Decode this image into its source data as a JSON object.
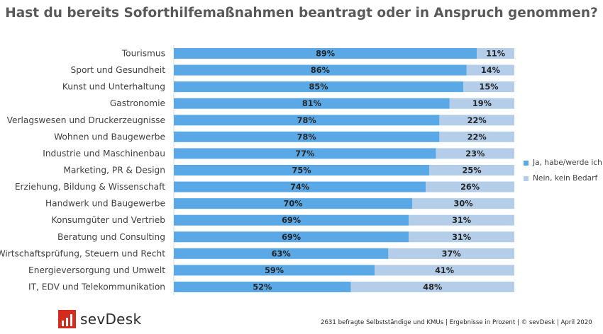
{
  "title": "Hast du bereits Soforthilfemaßnahmen beantragt oder in Anspruch genommen?",
  "chart_data": {
    "type": "bar",
    "orientation": "horizontal",
    "stacked": true,
    "title": "Hast du bereits Soforthilfemaßnahmen beantragt oder in Anspruch genommen?",
    "categories": [
      "Tourismus",
      "Sport und Gesundheit",
      "Kunst und Unterhaltung",
      "Gastronomie",
      "Verlagswesen und Druckerzeugnisse",
      "Wohnen und Baugewerbe",
      "Industrie und Maschinenbau",
      "Marketing, PR & Design",
      "Erziehung, Bildung & Wissenschaft",
      "Handwerk und Baugewerbe",
      "Konsumgüter und Vertrieb",
      "Beratung und Consulting",
      "Wirtschaftsprüfung, Steuern und Recht",
      "Energieversorgung und Umwelt",
      "IT, EDV und Telekommunikation"
    ],
    "series": [
      {
        "name": "Ja, habe/werde ich",
        "color": "#5aa9e6",
        "values": [
          89,
          86,
          85,
          81,
          78,
          78,
          77,
          75,
          74,
          70,
          69,
          69,
          63,
          59,
          52
        ]
      },
      {
        "name": "Nein, kein Bedarf",
        "color": "#b4cde9",
        "values": [
          11,
          14,
          15,
          19,
          22,
          22,
          23,
          25,
          26,
          30,
          31,
          31,
          37,
          41,
          48
        ]
      }
    ],
    "value_suffix": "%",
    "xlim": [
      0,
      100
    ],
    "legend_position": "right"
  },
  "footer": {
    "brand": "sevDesk",
    "note": "2631 befragte Selbstständige und KMUs | Ergebnisse in Prozent | © sevDesk | April 2020"
  }
}
